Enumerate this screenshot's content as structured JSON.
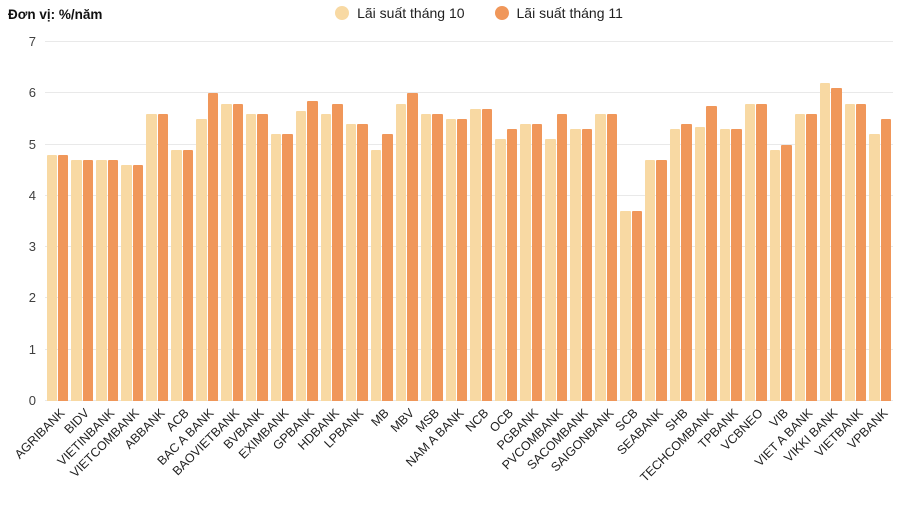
{
  "header": {
    "unit_label": "Đơn vị: %/năm"
  },
  "legend": [
    {
      "label": "Lãi suất tháng 10",
      "color": "#F8D9A3"
    },
    {
      "label": "Lãi suất tháng 11",
      "color": "#F0975A"
    }
  ],
  "chart_data": {
    "type": "bar",
    "title": "",
    "unit": "Đơn vị: %/năm",
    "categories": [
      "AGRIBANK",
      "BIDV",
      "VIETINBANK",
      "VIETCOMBANK",
      "ABBANK",
      "ACB",
      "BAC A BANK",
      "BAOVIETBANK",
      "BVBANK",
      "EXIMBANK",
      "GPBANK",
      "HDBANK",
      "LPBANK",
      "MB",
      "MBV",
      "MSB",
      "NAM A BANK",
      "NCB",
      "OCB",
      "PGBANK",
      "PVCOMBANK",
      "SACOMBANK",
      "SAIGONBANK",
      "SCB",
      "SEABANK",
      "SHB",
      "TECHCOMBANK",
      "TPBANK",
      "VCBNEO",
      "VIB",
      "VIET A BANK",
      "VIKKI BANK",
      "VIETBANK",
      "VPBANK"
    ],
    "series": [
      {
        "name": "Lãi suất tháng 10",
        "color": "#F8D9A3",
        "values": [
          4.8,
          4.7,
          4.7,
          4.6,
          5.6,
          4.9,
          5.5,
          5.8,
          5.6,
          5.2,
          5.65,
          5.6,
          5.4,
          4.9,
          5.8,
          5.6,
          5.5,
          5.7,
          5.1,
          5.4,
          5.1,
          5.3,
          5.6,
          3.7,
          4.7,
          5.3,
          5.35,
          5.3,
          5.8,
          4.9,
          5.6,
          6.2,
          5.8,
          5.2
        ]
      },
      {
        "name": "Lãi suất tháng 11",
        "color": "#F0975A",
        "values": [
          4.8,
          4.7,
          4.7,
          4.6,
          5.6,
          4.9,
          6.0,
          5.8,
          5.6,
          5.2,
          5.85,
          5.8,
          5.4,
          5.2,
          6.0,
          5.6,
          5.5,
          5.7,
          5.3,
          5.4,
          5.6,
          5.3,
          5.6,
          3.7,
          4.7,
          5.4,
          5.75,
          5.3,
          5.8,
          5.0,
          5.6,
          6.1,
          5.8,
          5.5
        ]
      }
    ],
    "xlabel": "",
    "ylabel": "%/năm",
    "ylim": [
      0,
      7
    ],
    "yticks": [
      0,
      1,
      2,
      3,
      4,
      5,
      6,
      7
    ],
    "grid": true,
    "legend_position": "top-center",
    "grid_color": "#e9e9e9"
  }
}
